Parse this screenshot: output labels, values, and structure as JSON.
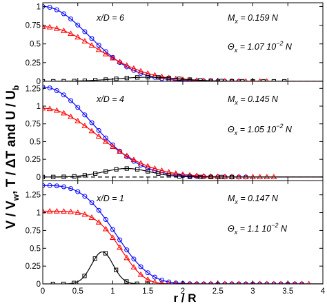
{
  "chart_data": [
    {
      "type": "line",
      "panel": "top",
      "xlim": [
        0,
        4
      ],
      "ylim": [
        0,
        1.05
      ],
      "yticks": [
        "0",
        "0.25",
        "0.5",
        "0.75",
        "1"
      ],
      "annotations": {
        "station": "x/D = 6",
        "Mx": "M",
        "Mx_sub": "x",
        "Mx_val": " = 0.159 N",
        "Th": "Θ",
        "Th_sub": "x",
        "Th_val": " = 1.07 10",
        "Th_exp": "−2",
        "Th_unit": " N"
      },
      "series": [
        {
          "color": "#0000ff",
          "marker": "circle",
          "peak": 1.0,
          "width": 0.78,
          "power": 2.0
        },
        {
          "color": "#ff0000",
          "marker": "triangle",
          "peak": 0.73,
          "width": 0.9,
          "power": 2.0
        },
        {
          "color": "#000000",
          "marker": "square",
          "peak": 0.055,
          "center": 1.5,
          "width": 0.95,
          "power": 2.0
        }
      ],
      "dashed_zero": true
    },
    {
      "type": "line",
      "panel": "middle",
      "xlim": [
        0,
        4
      ],
      "ylim": [
        -0.05,
        1.35
      ],
      "yticks": [
        "0",
        "0.25",
        "0.5",
        "0.75",
        "1",
        "1.25"
      ],
      "annotations": {
        "station": "x/D = 4",
        "Mx": "M",
        "Mx_sub": "x",
        "Mx_val": " = 0.145 N",
        "Th": "Θ",
        "Th_sub": "x",
        "Th_val": " = 1.05 10",
        "Th_exp": "−2",
        "Th_unit": " N"
      },
      "series": [
        {
          "color": "#0000ff",
          "marker": "circle",
          "peak": 1.27,
          "width": 0.82,
          "power": 2.0
        },
        {
          "color": "#ff0000",
          "marker": "triangle",
          "peak": 0.97,
          "width": 0.92,
          "power": 2.0
        },
        {
          "color": "#000000",
          "marker": "square",
          "peak": 0.12,
          "center": 1.2,
          "width": 0.7,
          "power": 2.0
        }
      ],
      "dashed_zero": true
    },
    {
      "type": "line",
      "panel": "bottom",
      "xlim": [
        0,
        4
      ],
      "ylim": [
        0,
        1.45
      ],
      "xlabel": "r / R",
      "xticks": [
        "0",
        "0.5",
        "1",
        "1.5",
        "2",
        "2.5",
        "3",
        "3.5",
        "4"
      ],
      "yticks": [
        "0",
        "0.25",
        "0.5",
        "0.75",
        "1",
        "1.25"
      ],
      "annotations": {
        "station": "x/D = 1",
        "Mx": "M",
        "Mx_sub": "x",
        "Mx_val": " = 0.147 N",
        "Th": "Θ",
        "Th_sub": "x",
        "Th_val": " = 1.1 10",
        "Th_exp": "−2",
        "Th_unit": " N"
      },
      "series": [
        {
          "color": "#0000ff",
          "marker": "circle",
          "peak": 1.38,
          "width": 1.05,
          "power": 3.2
        },
        {
          "color": "#ff0000",
          "marker": "triangle",
          "peak": 1.02,
          "width": 1.1,
          "power": 4.5
        },
        {
          "color": "#000000",
          "marker": "square",
          "peak": 0.45,
          "center": 0.85,
          "width": 0.32,
          "power": 2.0
        }
      ],
      "dashed_zero": false
    }
  ],
  "ylabel_parts": [
    "V / V",
    "w",
    ",  T / ΔT  and  U / U",
    "b"
  ]
}
